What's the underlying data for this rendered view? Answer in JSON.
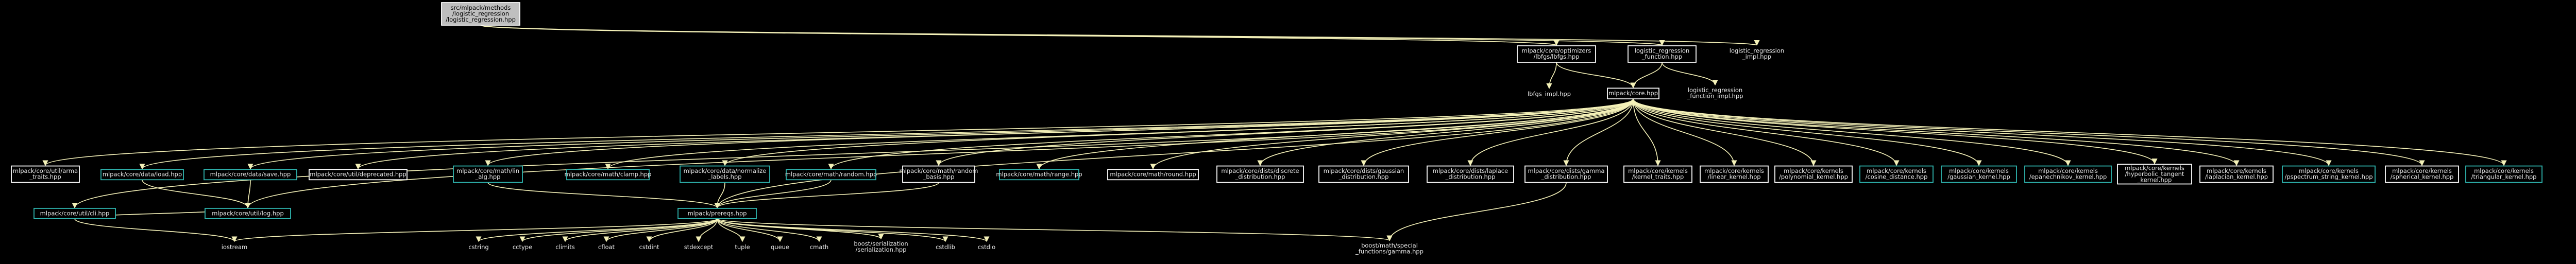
{
  "colors": {
    "background": "#000000",
    "edge": "#f4f1b8",
    "node_border": "#ffffff",
    "linked_node_border": "#2fb6b0",
    "root_fill": "#bfbfbf"
  },
  "nodes": [
    {
      "id": "root",
      "kind": "root",
      "lines": [
        "src/mlpack/methods",
        "/logistic_regression",
        "/logistic_regression.hpp"
      ]
    },
    {
      "id": "lbfgs",
      "kind": "white",
      "lines": [
        "mlpack/core/optimizers",
        "/lbfgs/lbfgs.hpp"
      ]
    },
    {
      "id": "lrfunc",
      "kind": "white",
      "lines": [
        "logistic_regression",
        "_function.hpp"
      ]
    },
    {
      "id": "lrimpl",
      "kind": "plain",
      "lines": [
        "logistic_regression",
        "_impl.hpp"
      ]
    },
    {
      "id": "lbfgsimpl",
      "kind": "plain",
      "lines": [
        "lbfgs_impl.hpp"
      ]
    },
    {
      "id": "core",
      "kind": "white",
      "lines": [
        "mlpack/core.hpp"
      ]
    },
    {
      "id": "lrfuncimpl",
      "kind": "plain",
      "lines": [
        "logistic_regression",
        "_function_impl.hpp"
      ]
    },
    {
      "id": "serialtraits",
      "kind": "white",
      "lines": [
        "mlpack/core/util/arma",
        "_traits.hpp"
      ]
    },
    {
      "id": "load",
      "kind": "cyan",
      "lines": [
        "mlpack/core/data/load.hpp"
      ]
    },
    {
      "id": "save",
      "kind": "cyan",
      "lines": [
        "mlpack/core/data/save.hpp"
      ]
    },
    {
      "id": "deprecated",
      "kind": "white",
      "lines": [
        "mlpack/core/util/deprecated.hpp"
      ]
    },
    {
      "id": "lin_alg",
      "kind": "cyan",
      "lines": [
        "mlpack/core/math/lin",
        "_alg.hpp"
      ]
    },
    {
      "id": "clamp",
      "kind": "cyan",
      "lines": [
        "mlpack/core/math/clamp.hpp"
      ]
    },
    {
      "id": "normalize",
      "kind": "cyan",
      "lines": [
        "mlpack/core/data/normalize",
        "_labels.hpp"
      ]
    },
    {
      "id": "random",
      "kind": "cyan",
      "lines": [
        "mlpack/core/math/random.hpp"
      ]
    },
    {
      "id": "random_basis",
      "kind": "white",
      "lines": [
        "mlpack/core/math/random",
        "_basis.hpp"
      ]
    },
    {
      "id": "range",
      "kind": "cyan",
      "lines": [
        "mlpack/core/math/range.hpp"
      ]
    },
    {
      "id": "round",
      "kind": "white",
      "lines": [
        "mlpack/core/math/round.hpp"
      ]
    },
    {
      "id": "discrete",
      "kind": "white",
      "lines": [
        "mlpack/core/dists/discrete",
        "_distribution.hpp"
      ]
    },
    {
      "id": "gaussian_dist",
      "kind": "white",
      "lines": [
        "mlpack/core/dists/gaussian",
        "_distribution.hpp"
      ]
    },
    {
      "id": "laplace_dist",
      "kind": "white",
      "lines": [
        "mlpack/core/dists/laplace",
        "_distribution.hpp"
      ]
    },
    {
      "id": "gamma_dist",
      "kind": "white",
      "lines": [
        "mlpack/core/dists/gamma",
        "_distribution.hpp"
      ]
    },
    {
      "id": "kernel_traits",
      "kind": "white",
      "lines": [
        "mlpack/core/kernels",
        "/kernel_traits.hpp"
      ]
    },
    {
      "id": "linear_kernel",
      "kind": "white",
      "lines": [
        "mlpack/core/kernels",
        "/linear_kernel.hpp"
      ]
    },
    {
      "id": "polynomial",
      "kind": "white",
      "lines": [
        "mlpack/core/kernels",
        "/polynomial_kernel.hpp"
      ]
    },
    {
      "id": "cosine",
      "kind": "cyan",
      "lines": [
        "mlpack/core/kernels",
        "/cosine_distance.hpp"
      ]
    },
    {
      "id": "gaussian_kernel",
      "kind": "cyan",
      "lines": [
        "mlpack/core/kernels",
        "/gaussian_kernel.hpp"
      ]
    },
    {
      "id": "epanechnikov",
      "kind": "cyan",
      "lines": [
        "mlpack/core/kernels",
        "/epanechnikov_kernel.hpp"
      ]
    },
    {
      "id": "tangent",
      "kind": "white",
      "lines": [
        "mlpack/core/kernels",
        "/hyperbolic_tangent",
        "_kernel.hpp"
      ]
    },
    {
      "id": "laplacian",
      "kind": "white",
      "lines": [
        "mlpack/core/kernels",
        "/laplacian_kernel.hpp"
      ]
    },
    {
      "id": "pspectrum",
      "kind": "cyan",
      "lines": [
        "mlpack/core/kernels",
        "/pspectrum_string_kernel.hpp"
      ]
    },
    {
      "id": "spherical",
      "kind": "white",
      "lines": [
        "mlpack/core/kernels",
        "/spherical_kernel.hpp"
      ]
    },
    {
      "id": "triangular",
      "kind": "cyan",
      "lines": [
        "mlpack/core/kernels",
        "/triangular_kernel.hpp"
      ]
    },
    {
      "id": "cli",
      "kind": "cyan",
      "lines": [
        "mlpack/core/util/cli.hpp"
      ]
    },
    {
      "id": "log",
      "kind": "cyan",
      "lines": [
        "mlpack/core/util/log.hpp"
      ]
    },
    {
      "id": "prereqs",
      "kind": "cyan",
      "lines": [
        "mlpack/prereqs.hpp"
      ]
    },
    {
      "id": "gamma",
      "kind": "plain",
      "lines": [
        "boost/math/special",
        "_functions/gamma.hpp"
      ]
    },
    {
      "id": "iostream",
      "kind": "plain",
      "lines": [
        "iostream"
      ]
    },
    {
      "id": "cstring",
      "kind": "plain",
      "lines": [
        "cstring"
      ]
    },
    {
      "id": "cctype",
      "kind": "plain",
      "lines": [
        "cctype"
      ]
    },
    {
      "id": "climits",
      "kind": "plain",
      "lines": [
        "climits"
      ]
    },
    {
      "id": "cfloat",
      "kind": "plain",
      "lines": [
        "cfloat"
      ]
    },
    {
      "id": "cstdint",
      "kind": "plain",
      "lines": [
        "cstdint"
      ]
    },
    {
      "id": "stdexcept",
      "kind": "plain",
      "lines": [
        "stdexcept"
      ]
    },
    {
      "id": "tuple",
      "kind": "plain",
      "lines": [
        "tuple"
      ]
    },
    {
      "id": "queue",
      "kind": "plain",
      "lines": [
        "queue"
      ]
    },
    {
      "id": "cmath",
      "kind": "plain",
      "lines": [
        "cmath"
      ]
    },
    {
      "id": "serialization",
      "kind": "plain",
      "lines": [
        "boost/serialization",
        "/serialization.hpp"
      ]
    },
    {
      "id": "cstdlib",
      "kind": "plain",
      "lines": [
        "cstdlib"
      ]
    },
    {
      "id": "cstdio",
      "kind": "plain",
      "lines": [
        "cstdio"
      ]
    }
  ],
  "edges": [
    [
      "root",
      "lbfgs"
    ],
    [
      "root",
      "lrfunc"
    ],
    [
      "root",
      "lrimpl"
    ],
    [
      "lbfgs",
      "lbfgsimpl"
    ],
    [
      "lbfgs",
      "core"
    ],
    [
      "lrfunc",
      "core"
    ],
    [
      "lrfunc",
      "lrfuncimpl"
    ],
    [
      "core",
      "serialtraits"
    ],
    [
      "core",
      "load"
    ],
    [
      "core",
      "save"
    ],
    [
      "core",
      "deprecated"
    ],
    [
      "core",
      "lin_alg"
    ],
    [
      "core",
      "clamp"
    ],
    [
      "core",
      "normalize"
    ],
    [
      "core",
      "random"
    ],
    [
      "core",
      "random_basis"
    ],
    [
      "core",
      "range"
    ],
    [
      "core",
      "round"
    ],
    [
      "core",
      "discrete"
    ],
    [
      "core",
      "gaussian_dist"
    ],
    [
      "core",
      "laplace_dist"
    ],
    [
      "core",
      "gamma_dist"
    ],
    [
      "core",
      "kernel_traits"
    ],
    [
      "core",
      "linear_kernel"
    ],
    [
      "core",
      "polynomial"
    ],
    [
      "core",
      "cosine"
    ],
    [
      "core",
      "gaussian_kernel"
    ],
    [
      "core",
      "epanechnikov"
    ],
    [
      "core",
      "tangent"
    ],
    [
      "core",
      "laplacian"
    ],
    [
      "core",
      "pspectrum"
    ],
    [
      "core",
      "spherical"
    ],
    [
      "core",
      "triangular"
    ],
    [
      "core",
      "cli"
    ],
    [
      "core",
      "log"
    ],
    [
      "core",
      "prereqs"
    ],
    [
      "load",
      "log"
    ],
    [
      "save",
      "log"
    ],
    [
      "cli",
      "log"
    ],
    [
      "lin_alg",
      "prereqs"
    ],
    [
      "normalize",
      "prereqs"
    ],
    [
      "random",
      "prereqs"
    ],
    [
      "random_basis",
      "prereqs"
    ],
    [
      "cli",
      "iostream"
    ],
    [
      "gamma_dist",
      "gamma"
    ],
    [
      "prereqs",
      "iostream"
    ],
    [
      "prereqs",
      "cstring"
    ],
    [
      "prereqs",
      "cctype"
    ],
    [
      "prereqs",
      "climits"
    ],
    [
      "prereqs",
      "cfloat"
    ],
    [
      "prereqs",
      "cstdint"
    ],
    [
      "prereqs",
      "stdexcept"
    ],
    [
      "prereqs",
      "tuple"
    ],
    [
      "prereqs",
      "queue"
    ],
    [
      "prereqs",
      "cmath"
    ],
    [
      "prereqs",
      "serialization"
    ],
    [
      "prereqs",
      "cstdlib"
    ],
    [
      "prereqs",
      "cstdio"
    ],
    [
      "prereqs",
      "gamma"
    ]
  ]
}
